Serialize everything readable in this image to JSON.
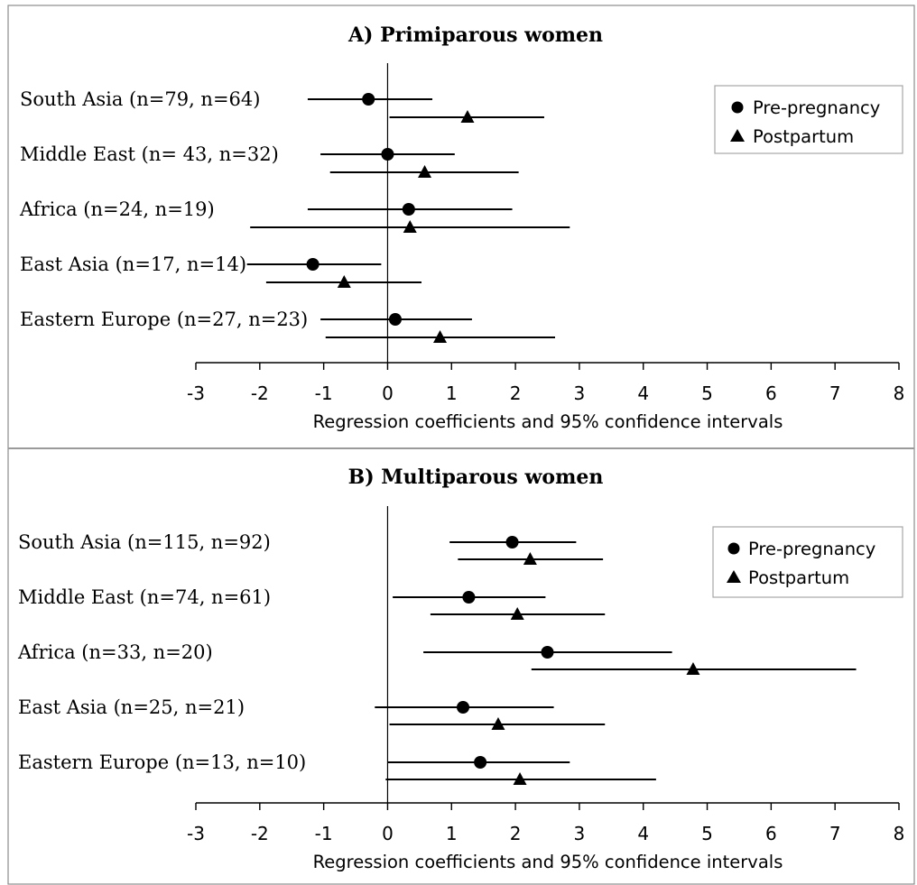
{
  "chart_data": [
    {
      "type": "scatter",
      "subtype": "forest-plot",
      "title": "A) Primiparous women",
      "xlabel": "Regression coefficients and 95% confidence intervals",
      "xlim": [
        -3,
        8
      ],
      "xticks": [
        "-3",
        "-2",
        "-1",
        "0",
        "1",
        "2",
        "3",
        "4",
        "5",
        "6",
        "7",
        "8"
      ],
      "categories": [
        "South Asia (n=79, n=64)",
        "Middle East (n= 43, n=32)",
        "Africa (n=24, n=19)",
        "East Asia (n=17, n=14)",
        "Eastern Europe (n=27, n=23)"
      ],
      "legend": {
        "placement": "top-right",
        "entries": [
          "Pre-pregnancy",
          "Postpartum"
        ]
      },
      "series": [
        {
          "name": "Pre-pregnancy",
          "marker": "circle",
          "points": [
            {
              "estimate": -0.3,
              "low": -1.25,
              "high": 0.7
            },
            {
              "estimate": 0.0,
              "low": -1.05,
              "high": 1.05
            },
            {
              "estimate": 0.33,
              "low": -1.25,
              "high": 1.95
            },
            {
              "estimate": -1.17,
              "low": -2.2,
              "high": -0.1
            },
            {
              "estimate": 0.12,
              "low": -1.05,
              "high": 1.32
            }
          ]
        },
        {
          "name": "Postpartum",
          "marker": "triangle",
          "points": [
            {
              "estimate": 1.25,
              "low": 0.03,
              "high": 2.45
            },
            {
              "estimate": 0.58,
              "low": -0.9,
              "high": 2.05
            },
            {
              "estimate": 0.35,
              "low": -2.15,
              "high": 2.85
            },
            {
              "estimate": -0.68,
              "low": -1.9,
              "high": 0.53
            },
            {
              "estimate": 0.82,
              "low": -0.97,
              "high": 2.62
            }
          ]
        }
      ]
    },
    {
      "type": "scatter",
      "subtype": "forest-plot",
      "title": "B) Multiparous women",
      "xlabel": "Regression coefficients and 95% confidence intervals",
      "xlim": [
        -3,
        8
      ],
      "xticks": [
        "-3",
        "-2",
        "-1",
        "0",
        "1",
        "2",
        "3",
        "4",
        "5",
        "6",
        "7",
        "8"
      ],
      "categories": [
        "South Asia (n=115, n=92)",
        "Middle East (n=74, n=61)",
        "Africa (n=33, n=20)",
        "East Asia (n=25, n=21)",
        "Eastern Europe (n=13, n=10)"
      ],
      "legend": {
        "placement": "top-right",
        "entries": [
          "Pre-pregnancy",
          "Postpartum"
        ]
      },
      "series": [
        {
          "name": "Pre-pregnancy",
          "marker": "circle",
          "points": [
            {
              "estimate": 1.95,
              "low": 0.97,
              "high": 2.95
            },
            {
              "estimate": 1.27,
              "low": 0.08,
              "high": 2.47
            },
            {
              "estimate": 2.5,
              "low": 0.56,
              "high": 4.45
            },
            {
              "estimate": 1.18,
              "low": -0.2,
              "high": 2.6
            },
            {
              "estimate": 1.45,
              "low": 0.0,
              "high": 2.85
            }
          ]
        },
        {
          "name": "Postpartum",
          "marker": "triangle",
          "points": [
            {
              "estimate": 2.23,
              "low": 1.1,
              "high": 3.37
            },
            {
              "estimate": 2.03,
              "low": 0.67,
              "high": 3.4
            },
            {
              "estimate": 4.78,
              "low": 2.25,
              "high": 7.33
            },
            {
              "estimate": 1.73,
              "low": 0.03,
              "high": 3.4
            },
            {
              "estimate": 2.07,
              "low": -0.03,
              "high": 4.2
            }
          ]
        }
      ]
    }
  ]
}
